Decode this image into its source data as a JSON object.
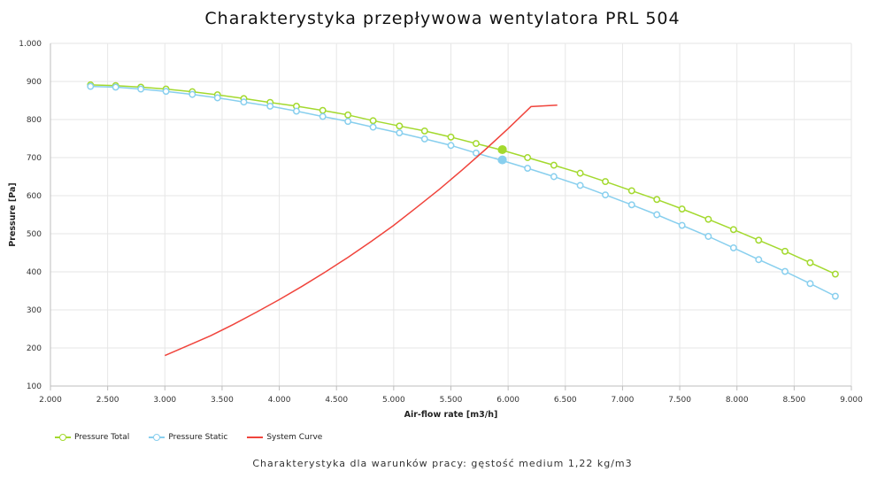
{
  "chart_data": {
    "type": "line",
    "title": "Charakterystyka przepływowa wentylatora PRL 504",
    "subtitle": "Charakterystyka dla warunków pracy: gęstość medium 1,22 kg/m3",
    "xlabel": "Air-flow rate [m3/h]",
    "ylabel": "Pressure [Pa]",
    "xlim": [
      2000,
      9000
    ],
    "ylim": [
      100,
      1000
    ],
    "x_ticks": [
      "2.000",
      "2.500",
      "3.000",
      "3.500",
      "4.000",
      "4.500",
      "5.000",
      "5.500",
      "6.000",
      "6.500",
      "7.000",
      "7.500",
      "8.000",
      "8.500",
      "9.000"
    ],
    "y_ticks": [
      "100",
      "200",
      "300",
      "400",
      "500",
      "600",
      "700",
      "800",
      "900",
      "1.000"
    ],
    "grid": true,
    "legend_position": "bottom-left",
    "series": [
      {
        "name": "Pressure Total",
        "color": "#a3d92e",
        "marker": "circle",
        "x": [
          2350,
          2570,
          2790,
          3010,
          3240,
          3460,
          3690,
          3920,
          4150,
          4380,
          4600,
          4820,
          5050,
          5270,
          5500,
          5720,
          5940,
          6170,
          6400,
          6630,
          6850,
          7080,
          7300,
          7520,
          7750,
          7970,
          8190,
          8420,
          8640,
          8860
        ],
        "y": [
          891,
          889,
          885,
          880,
          873,
          865,
          855,
          845,
          835,
          824,
          812,
          797,
          783,
          770,
          754,
          737,
          720,
          700,
          680,
          659,
          637,
          613,
          590,
          565,
          538,
          511,
          483,
          454,
          424,
          394
        ]
      },
      {
        "name": "Pressure Static",
        "color": "#88cfee",
        "marker": "circle",
        "x": [
          2350,
          2570,
          2790,
          3010,
          3240,
          3460,
          3690,
          3920,
          4150,
          4380,
          4600,
          4820,
          5050,
          5270,
          5500,
          5720,
          5940,
          6170,
          6400,
          6630,
          6850,
          7080,
          7300,
          7520,
          7750,
          7970,
          8190,
          8420,
          8640,
          8860
        ],
        "y": [
          887,
          885,
          880,
          874,
          866,
          857,
          846,
          835,
          822,
          808,
          795,
          780,
          765,
          749,
          732,
          712,
          693,
          672,
          650,
          627,
          602,
          576,
          550,
          522,
          493,
          463,
          432,
          401,
          369,
          336
        ]
      },
      {
        "name": "System Curve",
        "color": "#f0443c",
        "marker": "none",
        "x": [
          3000,
          3200,
          3400,
          3600,
          3800,
          4000,
          4200,
          4400,
          4600,
          4800,
          5000,
          5200,
          5400,
          5600,
          5800,
          6000,
          6200,
          6430
        ],
        "y": [
          180,
          206,
          232,
          262,
          294,
          327,
          362,
          399,
          438,
          479,
          522,
          569,
          617,
          668,
          721,
          776,
          834,
          838
        ]
      }
    ],
    "operating_points": [
      {
        "series": "Pressure Total",
        "x": 5950,
        "y": 721
      },
      {
        "series": "Pressure Static",
        "x": 5950,
        "y": 694
      }
    ]
  }
}
